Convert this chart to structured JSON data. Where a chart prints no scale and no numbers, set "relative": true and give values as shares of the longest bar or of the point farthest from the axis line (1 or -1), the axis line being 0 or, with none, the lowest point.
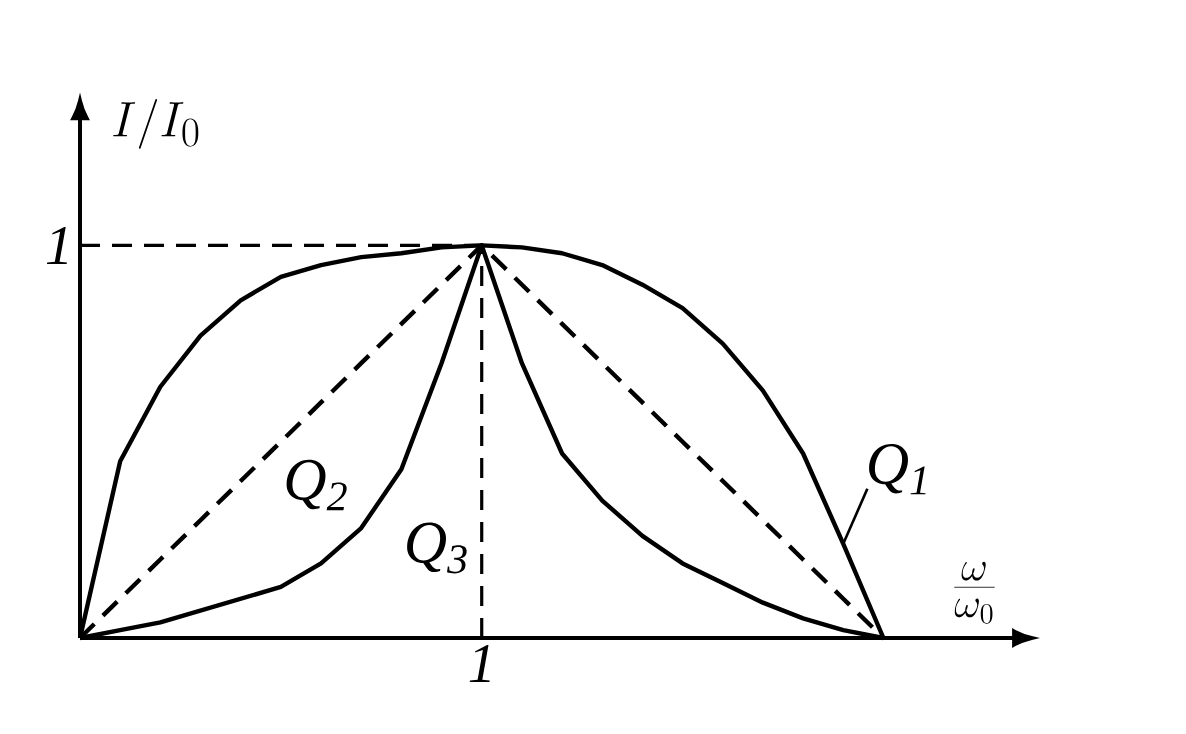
{
  "chart_data": {
    "type": "line",
    "relative": true,
    "xlabel": "\\frac{\\omega}{\\omega_0}",
    "ylabel": "I/I_0",
    "marker": "none",
    "categories": [
      null,
      null,
      null,
      null,
      null,
      null,
      null,
      null,
      null,
      null,
      null,
      null,
      null,
      null,
      null,
      null,
      null,
      null,
      null,
      null,
      null
    ],
    "series": [
      {
        "name": "Q$_{1}$",
        "color": "#000000",
        "line_style": "solid",
        "values": [
          0,
          0.45,
          0.64,
          0.77,
          0.86,
          0.92,
          0.95,
          0.97,
          0.98,
          0.995,
          1,
          0.995,
          0.98,
          0.95,
          0.9,
          0.84,
          0.75,
          0.63,
          0.47,
          0.24,
          0
        ]
      },
      {
        "name": "Q$_{2}$",
        "color": "#000000",
        "line_style": "dashed",
        "values": [
          0,
          0.1,
          0.2,
          0.3,
          0.4,
          0.5,
          0.6,
          0.7,
          0.8,
          0.9,
          1,
          0.9,
          0.8,
          0.7,
          0.6,
          0.5,
          0.4,
          0.3,
          0.2,
          0.1,
          0
        ]
      },
      {
        "name": "Q$_{3}$",
        "color": "#000000",
        "line_style": "solid",
        "values": [
          0,
          0.02,
          0.04,
          0.07,
          0.1,
          0.13,
          0.19,
          0.28,
          0.43,
          0.7,
          1,
          0.7,
          0.47,
          0.35,
          0.26,
          0.19,
          0.14,
          0.09,
          0.05,
          0.02,
          0
        ]
      }
    ],
    "ref_lines": [
      {
        "axis": "x",
        "label": "1",
        "line_style": "dashed"
      },
      {
        "axis": "y",
        "value": 1,
        "label": "1",
        "line_style": "dashed"
      }
    ]
  }
}
